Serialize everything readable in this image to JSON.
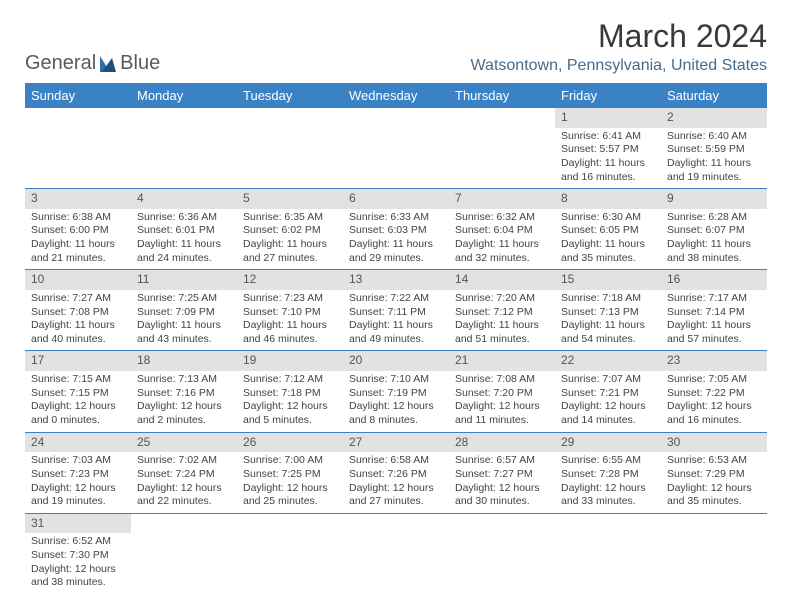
{
  "logo": {
    "text1": "General",
    "text2": "Blue",
    "sail_color": "#2f6fa8"
  },
  "title": "March 2024",
  "subtitle": "Watsontown, Pennsylvania, United States",
  "colors": {
    "header_bg": "#3b82c4",
    "header_fg": "#ffffff",
    "daynum_bg": "#e2e2e2",
    "border": "#3b82c4"
  },
  "weekdays": [
    "Sunday",
    "Monday",
    "Tuesday",
    "Wednesday",
    "Thursday",
    "Friday",
    "Saturday"
  ],
  "weeks": [
    [
      null,
      null,
      null,
      null,
      null,
      {
        "n": "1",
        "sr": "Sunrise: 6:41 AM",
        "ss": "Sunset: 5:57 PM",
        "dl1": "Daylight: 11 hours",
        "dl2": "and 16 minutes."
      },
      {
        "n": "2",
        "sr": "Sunrise: 6:40 AM",
        "ss": "Sunset: 5:59 PM",
        "dl1": "Daylight: 11 hours",
        "dl2": "and 19 minutes."
      }
    ],
    [
      {
        "n": "3",
        "sr": "Sunrise: 6:38 AM",
        "ss": "Sunset: 6:00 PM",
        "dl1": "Daylight: 11 hours",
        "dl2": "and 21 minutes."
      },
      {
        "n": "4",
        "sr": "Sunrise: 6:36 AM",
        "ss": "Sunset: 6:01 PM",
        "dl1": "Daylight: 11 hours",
        "dl2": "and 24 minutes."
      },
      {
        "n": "5",
        "sr": "Sunrise: 6:35 AM",
        "ss": "Sunset: 6:02 PM",
        "dl1": "Daylight: 11 hours",
        "dl2": "and 27 minutes."
      },
      {
        "n": "6",
        "sr": "Sunrise: 6:33 AM",
        "ss": "Sunset: 6:03 PM",
        "dl1": "Daylight: 11 hours",
        "dl2": "and 29 minutes."
      },
      {
        "n": "7",
        "sr": "Sunrise: 6:32 AM",
        "ss": "Sunset: 6:04 PM",
        "dl1": "Daylight: 11 hours",
        "dl2": "and 32 minutes."
      },
      {
        "n": "8",
        "sr": "Sunrise: 6:30 AM",
        "ss": "Sunset: 6:05 PM",
        "dl1": "Daylight: 11 hours",
        "dl2": "and 35 minutes."
      },
      {
        "n": "9",
        "sr": "Sunrise: 6:28 AM",
        "ss": "Sunset: 6:07 PM",
        "dl1": "Daylight: 11 hours",
        "dl2": "and 38 minutes."
      }
    ],
    [
      {
        "n": "10",
        "sr": "Sunrise: 7:27 AM",
        "ss": "Sunset: 7:08 PM",
        "dl1": "Daylight: 11 hours",
        "dl2": "and 40 minutes."
      },
      {
        "n": "11",
        "sr": "Sunrise: 7:25 AM",
        "ss": "Sunset: 7:09 PM",
        "dl1": "Daylight: 11 hours",
        "dl2": "and 43 minutes."
      },
      {
        "n": "12",
        "sr": "Sunrise: 7:23 AM",
        "ss": "Sunset: 7:10 PM",
        "dl1": "Daylight: 11 hours",
        "dl2": "and 46 minutes."
      },
      {
        "n": "13",
        "sr": "Sunrise: 7:22 AM",
        "ss": "Sunset: 7:11 PM",
        "dl1": "Daylight: 11 hours",
        "dl2": "and 49 minutes."
      },
      {
        "n": "14",
        "sr": "Sunrise: 7:20 AM",
        "ss": "Sunset: 7:12 PM",
        "dl1": "Daylight: 11 hours",
        "dl2": "and 51 minutes."
      },
      {
        "n": "15",
        "sr": "Sunrise: 7:18 AM",
        "ss": "Sunset: 7:13 PM",
        "dl1": "Daylight: 11 hours",
        "dl2": "and 54 minutes."
      },
      {
        "n": "16",
        "sr": "Sunrise: 7:17 AM",
        "ss": "Sunset: 7:14 PM",
        "dl1": "Daylight: 11 hours",
        "dl2": "and 57 minutes."
      }
    ],
    [
      {
        "n": "17",
        "sr": "Sunrise: 7:15 AM",
        "ss": "Sunset: 7:15 PM",
        "dl1": "Daylight: 12 hours",
        "dl2": "and 0 minutes."
      },
      {
        "n": "18",
        "sr": "Sunrise: 7:13 AM",
        "ss": "Sunset: 7:16 PM",
        "dl1": "Daylight: 12 hours",
        "dl2": "and 2 minutes."
      },
      {
        "n": "19",
        "sr": "Sunrise: 7:12 AM",
        "ss": "Sunset: 7:18 PM",
        "dl1": "Daylight: 12 hours",
        "dl2": "and 5 minutes."
      },
      {
        "n": "20",
        "sr": "Sunrise: 7:10 AM",
        "ss": "Sunset: 7:19 PM",
        "dl1": "Daylight: 12 hours",
        "dl2": "and 8 minutes."
      },
      {
        "n": "21",
        "sr": "Sunrise: 7:08 AM",
        "ss": "Sunset: 7:20 PM",
        "dl1": "Daylight: 12 hours",
        "dl2": "and 11 minutes."
      },
      {
        "n": "22",
        "sr": "Sunrise: 7:07 AM",
        "ss": "Sunset: 7:21 PM",
        "dl1": "Daylight: 12 hours",
        "dl2": "and 14 minutes."
      },
      {
        "n": "23",
        "sr": "Sunrise: 7:05 AM",
        "ss": "Sunset: 7:22 PM",
        "dl1": "Daylight: 12 hours",
        "dl2": "and 16 minutes."
      }
    ],
    [
      {
        "n": "24",
        "sr": "Sunrise: 7:03 AM",
        "ss": "Sunset: 7:23 PM",
        "dl1": "Daylight: 12 hours",
        "dl2": "and 19 minutes."
      },
      {
        "n": "25",
        "sr": "Sunrise: 7:02 AM",
        "ss": "Sunset: 7:24 PM",
        "dl1": "Daylight: 12 hours",
        "dl2": "and 22 minutes."
      },
      {
        "n": "26",
        "sr": "Sunrise: 7:00 AM",
        "ss": "Sunset: 7:25 PM",
        "dl1": "Daylight: 12 hours",
        "dl2": "and 25 minutes."
      },
      {
        "n": "27",
        "sr": "Sunrise: 6:58 AM",
        "ss": "Sunset: 7:26 PM",
        "dl1": "Daylight: 12 hours",
        "dl2": "and 27 minutes."
      },
      {
        "n": "28",
        "sr": "Sunrise: 6:57 AM",
        "ss": "Sunset: 7:27 PM",
        "dl1": "Daylight: 12 hours",
        "dl2": "and 30 minutes."
      },
      {
        "n": "29",
        "sr": "Sunrise: 6:55 AM",
        "ss": "Sunset: 7:28 PM",
        "dl1": "Daylight: 12 hours",
        "dl2": "and 33 minutes."
      },
      {
        "n": "30",
        "sr": "Sunrise: 6:53 AM",
        "ss": "Sunset: 7:29 PM",
        "dl1": "Daylight: 12 hours",
        "dl2": "and 35 minutes."
      }
    ],
    [
      {
        "n": "31",
        "sr": "Sunrise: 6:52 AM",
        "ss": "Sunset: 7:30 PM",
        "dl1": "Daylight: 12 hours",
        "dl2": "and 38 minutes."
      },
      null,
      null,
      null,
      null,
      null,
      null
    ]
  ]
}
